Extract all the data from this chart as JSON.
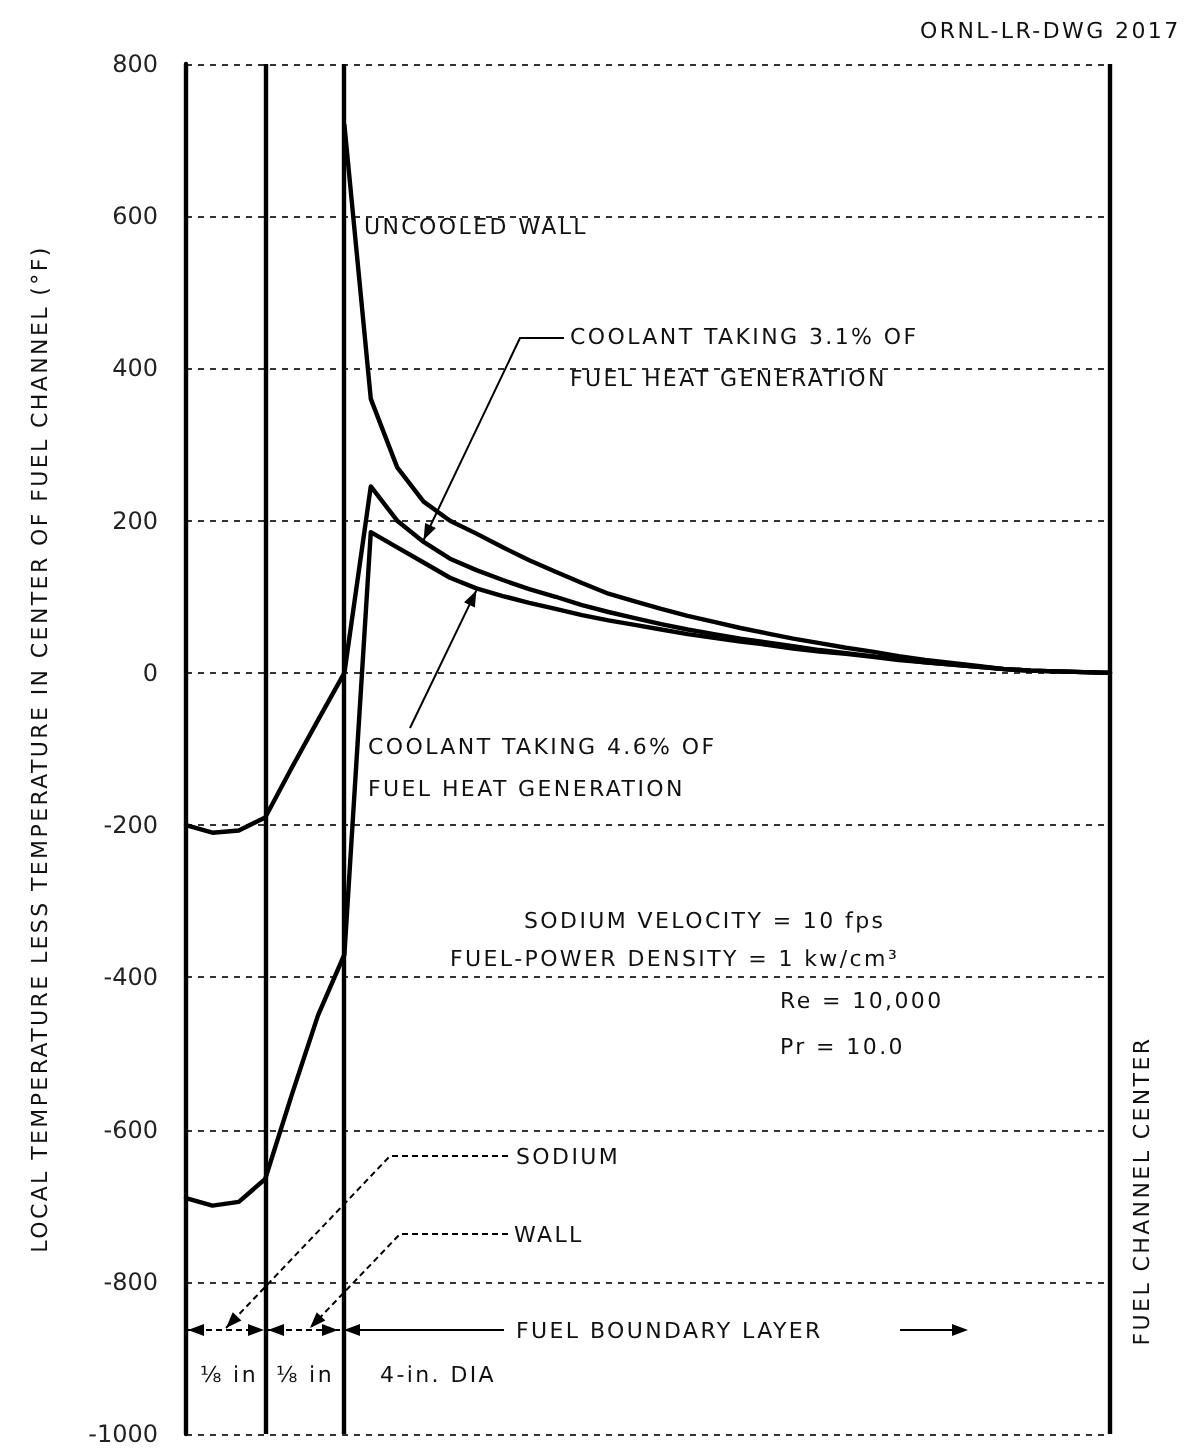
{
  "chart_data": {
    "type": "line",
    "ylabel": "LOCAL TEMPERATURE LESS TEMPERATURE IN CENTER OF FUEL CHANNEL (°F)",
    "categories": [
      null,
      null,
      null,
      null,
      null,
      null,
      null,
      null,
      null,
      null,
      null,
      null,
      null,
      null,
      null,
      null,
      null,
      null,
      null,
      null,
      null,
      null,
      null,
      null,
      null,
      null,
      null,
      null,
      null,
      null,
      null,
      null,
      null,
      null,
      null,
      null
    ],
    "series": [
      {
        "name": "UNCOOLED WALL",
        "color": "#000000",
        "values": [
          null,
          null,
          null,
          null,
          null,
          null,
          720,
          360,
          270,
          225,
          200,
          183,
          165,
          148,
          133,
          118,
          104,
          94,
          84,
          75,
          67,
          59,
          52,
          45,
          39,
          33,
          28,
          22,
          17,
          13,
          9,
          5,
          3,
          2,
          1,
          0
        ]
      },
      {
        "name": "COOLANT TAKING 3.1% OF FUEL HEAT GENERATION",
        "color": "#000000",
        "values": [
          -200,
          -210,
          -207,
          -190,
          -125,
          -62,
          0,
          245,
          200,
          172,
          150,
          135,
          122,
          110,
          100,
          89,
          80,
          72,
          64,
          57,
          51,
          45,
          40,
          35,
          30,
          26,
          22,
          18,
          14,
          11,
          8,
          5,
          3,
          2,
          1,
          0
        ]
      },
      {
        "name": "COOLANT TAKING 4.6% OF FUEL HEAT GENERATION",
        "color": "#000000",
        "values": [
          -690,
          -700,
          -695,
          -665,
          -555,
          -450,
          -370,
          185,
          165,
          145,
          125,
          111,
          101,
          92,
          84,
          76,
          69,
          63,
          57,
          51,
          46,
          41,
          37,
          32,
          28,
          25,
          21,
          17,
          14,
          11,
          8,
          5,
          3,
          2,
          1,
          0
        ]
      }
    ],
    "ylim": [
      -1000,
      800
    ],
    "yticks": [
      -1000,
      -800,
      -600,
      -400,
      -200,
      0,
      200,
      400,
      600,
      800
    ],
    "annotations": [
      "ORNL-LR-DWG 2017",
      "SODIUM VELOCITY = 10 fps",
      "FUEL-POWER DENSITY = 1 kw/cm³",
      "Re = 10,000",
      "Pr = 10.0",
      "SODIUM",
      "WALL",
      "FUEL BOUNDARY LAYER",
      "⅛ in",
      "⅛ in",
      "4-in. DIA",
      "FUEL CHANNEL CENTER"
    ],
    "grid": "y",
    "legend": false,
    "marker": "none",
    "line_style": "solid",
    "tick_labels": "y"
  }
}
